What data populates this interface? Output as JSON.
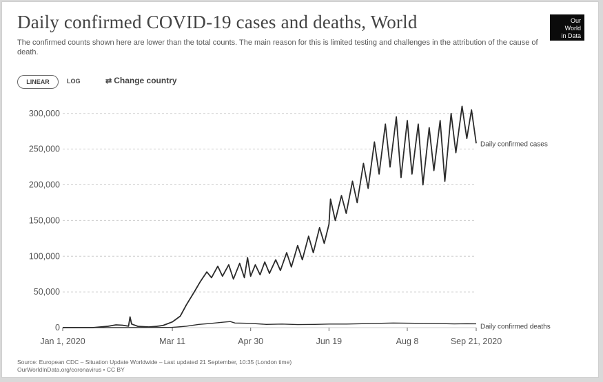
{
  "header": {
    "title": "Daily confirmed COVID-19 cases and deaths, World",
    "subtitle": "The confirmed counts shown here are lower than the total counts. The main reason for this is limited testing and challenges in the attribution of the cause of death.",
    "logo_line1": "Our World",
    "logo_line2": "in Data"
  },
  "controls": {
    "linear_label": "LINEAR",
    "log_label": "LOG",
    "change_country_label": "Change country"
  },
  "footer": {
    "source": "Source: European CDC – Situation Update Worldwide – Last updated 21 September, 10:35 (London time)",
    "license": "OurWorldInData.org/coronavirus • CC BY"
  },
  "colors": {
    "line": "#2b2b2b",
    "grid": "#cccccc",
    "axis": "#666666",
    "logo_bg": "#0b0b0b"
  },
  "chart_data": {
    "type": "line",
    "title": "Daily confirmed COVID-19 cases and deaths, World",
    "xlabel": "",
    "ylabel": "",
    "x_range": [
      "2020-01-01",
      "2020-09-21"
    ],
    "ylim": [
      0,
      320000
    ],
    "y_ticks": [
      "0",
      "50,000",
      "100,000",
      "150,000",
      "200,000",
      "250,000",
      "300,000"
    ],
    "y_tick_values": [
      0,
      50000,
      100000,
      150000,
      200000,
      250000,
      300000
    ],
    "x_tick_labels": [
      "Jan 1, 2020",
      "Mar 11",
      "Apr 30",
      "Jun 19",
      "Aug 8",
      "Sep 21, 2020"
    ],
    "x_tick_dates": [
      "2020-01-01",
      "2020-03-11",
      "2020-04-30",
      "2020-06-19",
      "2020-08-08",
      "2020-09-21"
    ],
    "grid": "horizontal dashed",
    "legend": "inline labels at line ends",
    "series": [
      {
        "name": "Daily confirmed cases",
        "points": [
          [
            "2020-01-01",
            0
          ],
          [
            "2020-01-20",
            0
          ],
          [
            "2020-01-25",
            1000
          ],
          [
            "2020-01-30",
            1900
          ],
          [
            "2020-02-04",
            3900
          ],
          [
            "2020-02-08",
            3400
          ],
          [
            "2020-02-12",
            2000
          ],
          [
            "2020-02-13",
            15000
          ],
          [
            "2020-02-14",
            5000
          ],
          [
            "2020-02-18",
            1800
          ],
          [
            "2020-02-25",
            1000
          ],
          [
            "2020-03-01",
            1800
          ],
          [
            "2020-03-05",
            3000
          ],
          [
            "2020-03-11",
            8000
          ],
          [
            "2020-03-16",
            16000
          ],
          [
            "2020-03-20",
            32000
          ],
          [
            "2020-03-25",
            50000
          ],
          [
            "2020-03-29",
            65000
          ],
          [
            "2020-04-02",
            78000
          ],
          [
            "2020-04-05",
            70000
          ],
          [
            "2020-04-09",
            86000
          ],
          [
            "2020-04-12",
            72000
          ],
          [
            "2020-04-16",
            88000
          ],
          [
            "2020-04-19",
            68000
          ],
          [
            "2020-04-23",
            90000
          ],
          [
            "2020-04-26",
            70000
          ],
          [
            "2020-04-28",
            98000
          ],
          [
            "2020-04-30",
            72000
          ],
          [
            "2020-05-03",
            88000
          ],
          [
            "2020-05-06",
            74000
          ],
          [
            "2020-05-09",
            92000
          ],
          [
            "2020-05-12",
            76000
          ],
          [
            "2020-05-16",
            95000
          ],
          [
            "2020-05-19",
            80000
          ],
          [
            "2020-05-23",
            105000
          ],
          [
            "2020-05-26",
            85000
          ],
          [
            "2020-05-30",
            115000
          ],
          [
            "2020-06-02",
            95000
          ],
          [
            "2020-06-06",
            128000
          ],
          [
            "2020-06-09",
            105000
          ],
          [
            "2020-06-13",
            140000
          ],
          [
            "2020-06-16",
            118000
          ],
          [
            "2020-06-19",
            145000
          ],
          [
            "2020-06-20",
            180000
          ],
          [
            "2020-06-23",
            150000
          ],
          [
            "2020-06-27",
            185000
          ],
          [
            "2020-06-30",
            160000
          ],
          [
            "2020-07-04",
            205000
          ],
          [
            "2020-07-07",
            175000
          ],
          [
            "2020-07-11",
            230000
          ],
          [
            "2020-07-14",
            195000
          ],
          [
            "2020-07-18",
            260000
          ],
          [
            "2020-07-21",
            215000
          ],
          [
            "2020-07-25",
            285000
          ],
          [
            "2020-07-28",
            225000
          ],
          [
            "2020-08-01",
            295000
          ],
          [
            "2020-08-04",
            210000
          ],
          [
            "2020-08-08",
            290000
          ],
          [
            "2020-08-11",
            215000
          ],
          [
            "2020-08-15",
            285000
          ],
          [
            "2020-08-18",
            200000
          ],
          [
            "2020-08-22",
            280000
          ],
          [
            "2020-08-25",
            220000
          ],
          [
            "2020-08-29",
            290000
          ],
          [
            "2020-09-01",
            205000
          ],
          [
            "2020-09-05",
            300000
          ],
          [
            "2020-09-08",
            245000
          ],
          [
            "2020-09-12",
            310000
          ],
          [
            "2020-09-15",
            265000
          ],
          [
            "2020-09-18",
            305000
          ],
          [
            "2020-09-21",
            258000
          ]
        ]
      },
      {
        "name": "Daily confirmed deaths",
        "points": [
          [
            "2020-01-01",
            0
          ],
          [
            "2020-02-10",
            100
          ],
          [
            "2020-03-05",
            300
          ],
          [
            "2020-03-11",
            400
          ],
          [
            "2020-03-20",
            2000
          ],
          [
            "2020-03-28",
            4500
          ],
          [
            "2020-04-05",
            6000
          ],
          [
            "2020-04-12",
            7500
          ],
          [
            "2020-04-17",
            8500
          ],
          [
            "2020-04-20",
            6500
          ],
          [
            "2020-04-30",
            6000
          ],
          [
            "2020-05-10",
            4500
          ],
          [
            "2020-05-20",
            5000
          ],
          [
            "2020-05-30",
            4200
          ],
          [
            "2020-06-10",
            4500
          ],
          [
            "2020-06-19",
            5000
          ],
          [
            "2020-06-30",
            5000
          ],
          [
            "2020-07-10",
            5500
          ],
          [
            "2020-07-20",
            6000
          ],
          [
            "2020-07-30",
            6500
          ],
          [
            "2020-08-08",
            6200
          ],
          [
            "2020-08-18",
            6000
          ],
          [
            "2020-08-28",
            5700
          ],
          [
            "2020-09-07",
            5200
          ],
          [
            "2020-09-15",
            5500
          ],
          [
            "2020-09-21",
            5400
          ]
        ]
      }
    ]
  }
}
